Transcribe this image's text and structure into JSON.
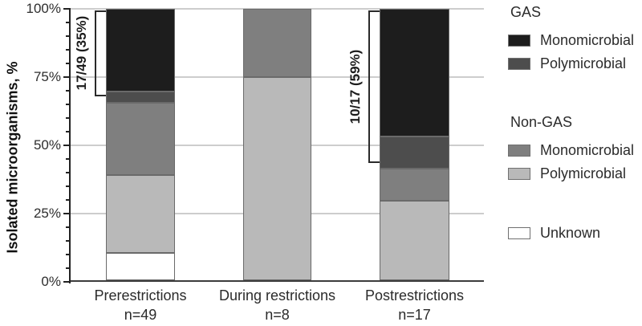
{
  "chart_data": {
    "type": "bar",
    "stacked": true,
    "title": "",
    "ylabel": "Isolated microorganisms, %",
    "xlabel": "",
    "ylim": [
      0,
      100
    ],
    "grid": true,
    "ytick_values": [
      0,
      25,
      50,
      75,
      100
    ],
    "ytick_labels": [
      "0%",
      "25%",
      "50%",
      "75%",
      "100%"
    ],
    "minor_tick_step": 5,
    "legend_position": "right",
    "categories": [
      "Prerestrictions",
      "During restrictions",
      "Postrestrictions"
    ],
    "category_counts": [
      "n=49",
      "n=8",
      "n=17"
    ],
    "series": [
      {
        "name": "Unknown",
        "group": "",
        "color": "#ffffff",
        "values": [
          10.2,
          0,
          0
        ]
      },
      {
        "name": "Polymicrobial",
        "group": "Non-GAS",
        "color": "#b9b9b9",
        "values": [
          28.6,
          75,
          29.4
        ]
      },
      {
        "name": "Monomicrobial",
        "group": "Non-GAS",
        "color": "#7f7f7f",
        "values": [
          26.5,
          25,
          11.8
        ]
      },
      {
        "name": "Polymicrobial",
        "group": "GAS",
        "color": "#4d4d4d",
        "values": [
          4.1,
          0,
          11.8
        ]
      },
      {
        "name": "Monomicrobial",
        "group": "GAS",
        "color": "#1d1d1d",
        "values": [
          30.6,
          0,
          47.0
        ]
      }
    ],
    "annotations": [
      {
        "text": "17/49 (35%)",
        "category_index": 0,
        "from_pct": 68,
        "to_pct": 100
      },
      {
        "text": "10/17 (59%)",
        "category_index": 2,
        "from_pct": 43.5,
        "to_pct": 100
      }
    ]
  },
  "legend": {
    "groups": [
      {
        "header": "GAS",
        "items": [
          {
            "label": "Monomicrobial",
            "color": "#1d1d1d"
          },
          {
            "label": "Polymicrobial",
            "color": "#4d4d4d"
          }
        ]
      },
      {
        "header": "Non-GAS",
        "items": [
          {
            "label": "Monomicrobial",
            "color": "#7f7f7f"
          },
          {
            "label": "Polymicrobial",
            "color": "#b9b9b9"
          }
        ]
      },
      {
        "header": "",
        "items": [
          {
            "label": "Unknown",
            "color": "#ffffff"
          }
        ]
      }
    ]
  }
}
